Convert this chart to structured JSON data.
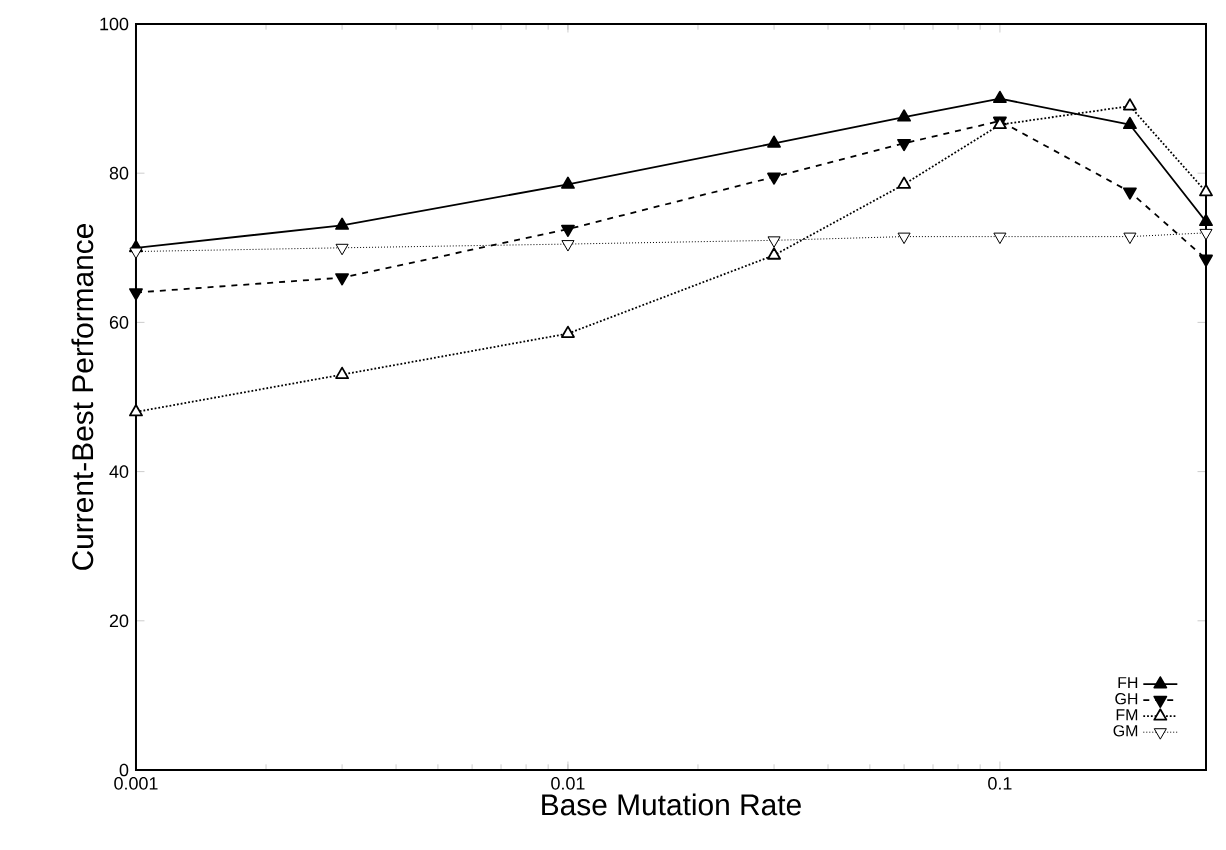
{
  "chart_data": {
    "type": "line",
    "xlabel": "Base Mutation Rate",
    "ylabel": "Current-Best Performance",
    "log": "x",
    "x": [
      0.001,
      0.003,
      0.01,
      0.03,
      0.06,
      0.1,
      0.2,
      0.3
    ],
    "series": [
      {
        "name": "FH",
        "color": "#000000",
        "values": [
          70,
          73,
          78.5,
          84,
          87.5,
          90,
          86.5,
          73.5
        ],
        "marker": "triangle",
        "line_style": "solid"
      },
      {
        "name": "GH",
        "color": "#000000",
        "values": [
          64,
          66,
          72.5,
          79.5,
          84,
          87,
          77.5,
          68.5
        ],
        "marker": "triangle",
        "line_style": "dashed"
      },
      {
        "name": "FM",
        "color": "#000000",
        "values": [
          48,
          53,
          58.5,
          69,
          78.5,
          86.5,
          89,
          77.5
        ],
        "marker": "triangle",
        "line_style": "dotted"
      },
      {
        "name": "GM",
        "color": "#000000",
        "values": [
          69.5,
          70,
          70.5,
          71,
          71.5,
          71.5,
          71.5,
          72
        ],
        "marker": "triangle",
        "line_style": "dotted"
      }
    ],
    "xlim": [
      0.001,
      0.3
    ],
    "xticks": [
      0.001,
      0.01,
      0.1
    ],
    "ylim": [
      0,
      100
    ],
    "yticks": [
      0,
      20,
      40,
      60,
      80,
      100
    ],
    "grid": false,
    "legend": "bottom right"
  }
}
